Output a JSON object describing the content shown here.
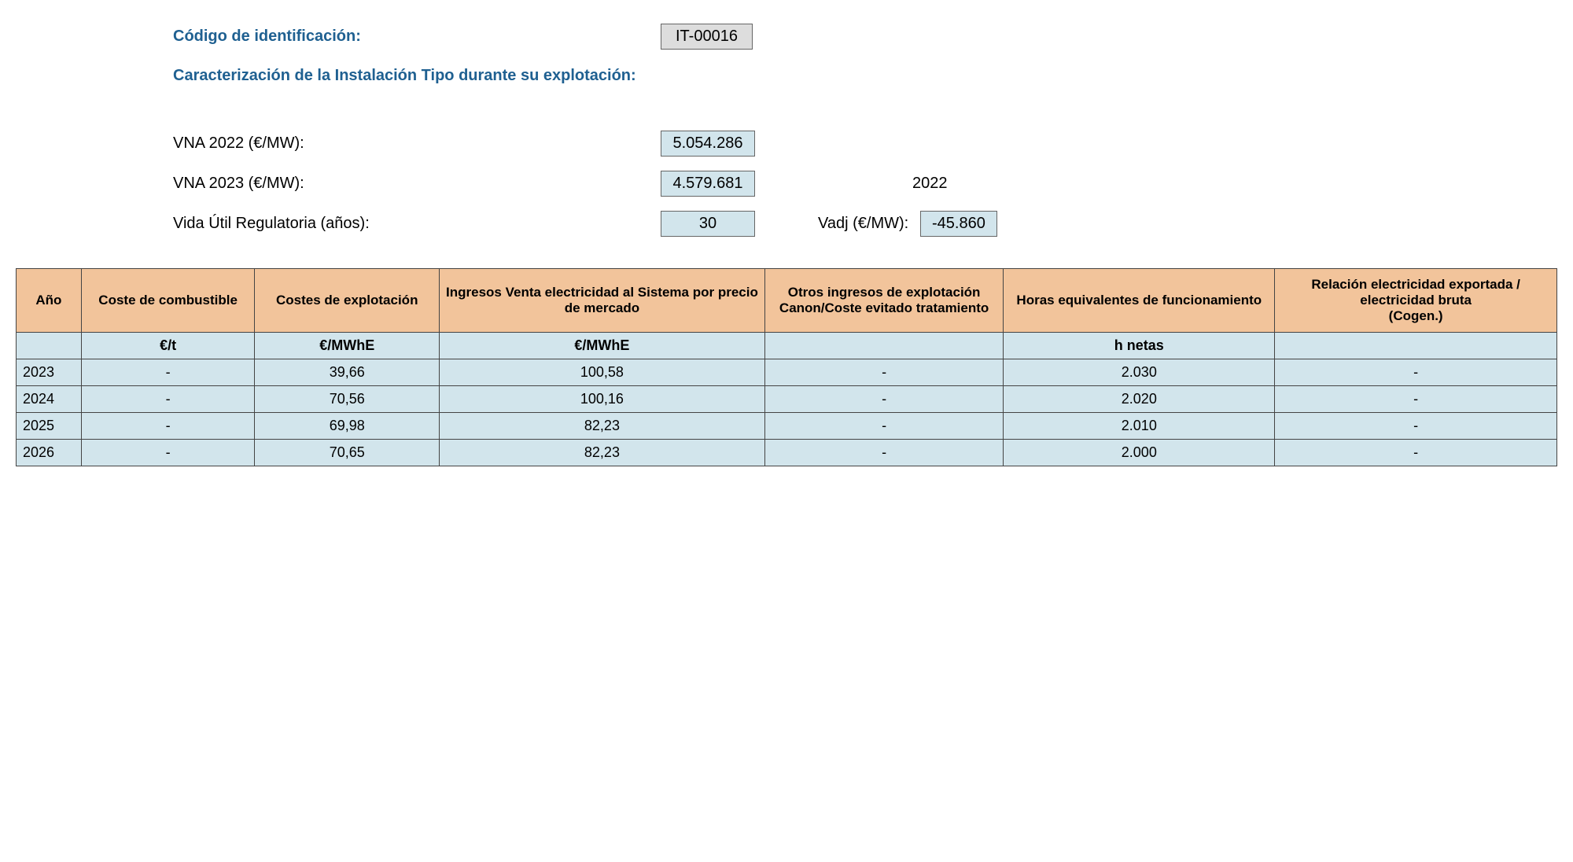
{
  "header": {
    "id_label": "Código de identificación:",
    "id_value": "IT-00016",
    "subtitle": "Caracterización de la Instalación Tipo durante su explotación:",
    "vna2022_label": "VNA 2022 (€/MW):",
    "vna2022_value": "5.054.286",
    "vna2023_label": "VNA 2023 (€/MW):",
    "vna2023_value": "4.579.681",
    "year_extra": "2022",
    "vida_label": "Vida Útil Regulatoria (años):",
    "vida_value": "30",
    "vadj_label": "Vadj (€/MW):",
    "vadj_value": "-45.860"
  },
  "table": {
    "columns": [
      "Año",
      "Coste de combustible",
      "Costes de explotación",
      "Ingresos Venta electricidad al Sistema por precio de mercado",
      "Otros ingresos de explotación Canon/Coste evitado tratamiento",
      "Horas equivalentes de funcionamiento",
      "Relación electricidad exportada / electricidad bruta\n(Cogen.)"
    ],
    "units_row": [
      "",
      "€/t",
      "€/MWhE",
      "€/MWhE",
      "",
      "h netas",
      ""
    ],
    "rows": [
      [
        "2023",
        "-",
        "39,66",
        "100,58",
        "-",
        "2.030",
        "-"
      ],
      [
        "2024",
        "-",
        "70,56",
        "100,16",
        "-",
        "2.020",
        "-"
      ],
      [
        "2025",
        "-",
        "69,98",
        "82,23",
        "-",
        "2.010",
        "-"
      ],
      [
        "2026",
        "-",
        "70,65",
        "82,23",
        "-",
        "2.000",
        "-"
      ]
    ],
    "col_widths": [
      "col-year",
      "col-fuel",
      "col-oper",
      "col-income",
      "col-other",
      "col-hours",
      "col-rel"
    ],
    "styling": {
      "header_bg": "#f2c49b",
      "cell_bg": "#d2e5ec",
      "border_color": "#444444",
      "header_fontsize": 17,
      "cell_fontsize": 18
    }
  }
}
